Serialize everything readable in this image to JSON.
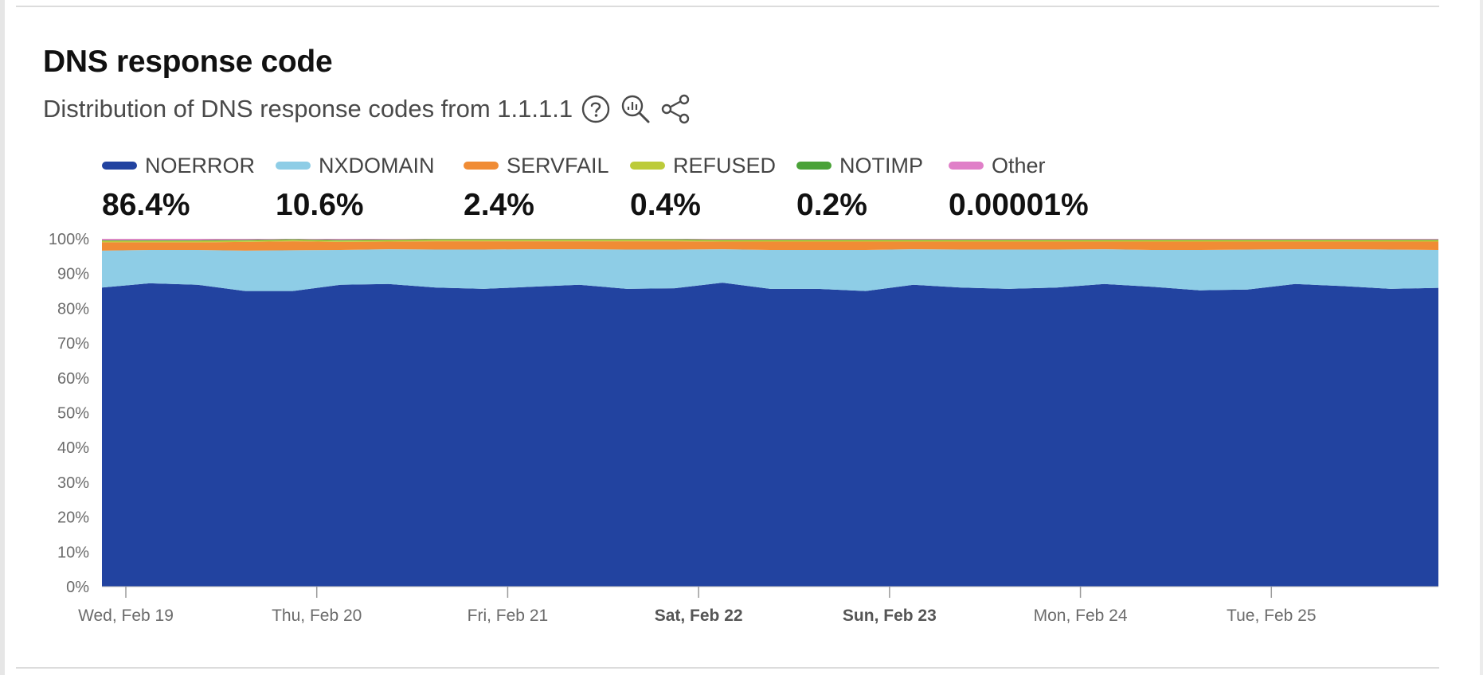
{
  "header": {
    "title": "DNS response code",
    "subtitle": "Distribution of DNS response codes from 1.1.1.1"
  },
  "icons": [
    "help-circle-icon",
    "zoom-chart-icon",
    "share-icon"
  ],
  "legend": [
    {
      "label": "NOERROR",
      "value": "86.4%",
      "color": "#2243a0"
    },
    {
      "label": "NXDOMAIN",
      "value": "10.6%",
      "color": "#8ecde6"
    },
    {
      "label": "SERVFAIL",
      "value": "2.4%",
      "color": "#f08c35"
    },
    {
      "label": "REFUSED",
      "value": "0.4%",
      "color": "#bccb3a"
    },
    {
      "label": "NOTIMP",
      "value": "0.2%",
      "color": "#4aa238"
    },
    {
      "label": "Other",
      "value": "0.00001%",
      "color": "#e07fc8"
    }
  ],
  "chart_data": {
    "type": "area",
    "stacked": true,
    "grid": false,
    "legend_placement": "top",
    "ylim": [
      0,
      100
    ],
    "y_tick_labels": [
      "0%",
      "10%",
      "20%",
      "30%",
      "40%",
      "50%",
      "60%",
      "70%",
      "80%",
      "90%",
      "100%"
    ],
    "x_tick_labels": [
      {
        "label": "Wed, Feb 19",
        "bold": false
      },
      {
        "label": "Thu, Feb 20",
        "bold": false
      },
      {
        "label": "Fri, Feb 21",
        "bold": false
      },
      {
        "label": "Sat, Feb 22",
        "bold": true
      },
      {
        "label": "Sun, Feb 23",
        "bold": true
      },
      {
        "label": "Mon, Feb 24",
        "bold": false
      },
      {
        "label": "Tue, Feb 25",
        "bold": false
      }
    ],
    "x": [
      "Feb 19 00:00",
      "Feb 19 06:00",
      "Feb 19 12:00",
      "Feb 19 18:00",
      "Feb 20 00:00",
      "Feb 20 06:00",
      "Feb 20 12:00",
      "Feb 20 18:00",
      "Feb 21 00:00",
      "Feb 21 06:00",
      "Feb 21 12:00",
      "Feb 21 18:00",
      "Feb 22 00:00",
      "Feb 22 06:00",
      "Feb 22 12:00",
      "Feb 22 18:00",
      "Feb 23 00:00",
      "Feb 23 06:00",
      "Feb 23 12:00",
      "Feb 23 18:00",
      "Feb 24 00:00",
      "Feb 24 06:00",
      "Feb 24 12:00",
      "Feb 24 18:00",
      "Feb 25 00:00",
      "Feb 25 06:00",
      "Feb 25 12:00",
      "Feb 25 18:00",
      "Feb 26 00:00"
    ],
    "series": [
      {
        "name": "NOERROR",
        "color": "#2243a0",
        "values": [
          86.0,
          87.2,
          86.8,
          85.0,
          85.0,
          86.8,
          87.0,
          86.0,
          85.6,
          86.2,
          86.8,
          85.6,
          85.8,
          87.4,
          85.6,
          85.6,
          85.0,
          86.8,
          86.0,
          85.6,
          86.0,
          87.0,
          86.2,
          85.2,
          85.4,
          87.0,
          86.4,
          85.6,
          85.9
        ]
      },
      {
        "name": "NXDOMAIN",
        "color": "#8ecde6",
        "values": [
          10.6,
          9.6,
          10.0,
          11.6,
          11.7,
          10.0,
          10.0,
          10.9,
          11.3,
          10.8,
          10.2,
          11.3,
          11.1,
          9.6,
          11.2,
          11.2,
          11.8,
          10.2,
          10.9,
          11.3,
          10.9,
          10.0,
          10.6,
          11.6,
          11.5,
          10.0,
          10.6,
          11.3,
          10.9
        ]
      },
      {
        "name": "SERVFAIL",
        "color": "#f08c35",
        "values": [
          2.4,
          2.2,
          2.2,
          2.5,
          2.6,
          2.3,
          2.2,
          2.4,
          2.4,
          2.3,
          2.3,
          2.4,
          2.4,
          2.2,
          2.4,
          2.4,
          2.4,
          2.2,
          2.3,
          2.3,
          2.3,
          2.2,
          2.4,
          2.4,
          2.3,
          2.2,
          2.2,
          2.3,
          2.4
        ]
      },
      {
        "name": "REFUSED",
        "color": "#bccb3a",
        "values": [
          0.4,
          0.4,
          0.4,
          0.4,
          0.4,
          0.4,
          0.4,
          0.4,
          0.4,
          0.4,
          0.4,
          0.4,
          0.4,
          0.4,
          0.4,
          0.4,
          0.4,
          0.4,
          0.4,
          0.4,
          0.4,
          0.4,
          0.4,
          0.4,
          0.4,
          0.4,
          0.4,
          0.4,
          0.4
        ]
      },
      {
        "name": "NOTIMP",
        "color": "#4aa238",
        "values": [
          0.2,
          0.2,
          0.2,
          0.2,
          0.2,
          0.2,
          0.2,
          0.2,
          0.2,
          0.2,
          0.2,
          0.2,
          0.2,
          0.2,
          0.2,
          0.2,
          0.2,
          0.2,
          0.2,
          0.2,
          0.2,
          0.2,
          0.2,
          0.2,
          0.2,
          0.2,
          0.2,
          0.2,
          0.2
        ]
      },
      {
        "name": "Other",
        "color": "#e07fc8",
        "values": [
          1e-05,
          1e-05,
          1e-05,
          1e-05,
          1e-05,
          1e-05,
          1e-05,
          1e-05,
          1e-05,
          1e-05,
          1e-05,
          1e-05,
          1e-05,
          1e-05,
          1e-05,
          1e-05,
          1e-05,
          1e-05,
          1e-05,
          1e-05,
          1e-05,
          1e-05,
          1e-05,
          1e-05,
          1e-05,
          1e-05,
          1e-05,
          1e-05,
          1e-05
        ]
      }
    ]
  }
}
